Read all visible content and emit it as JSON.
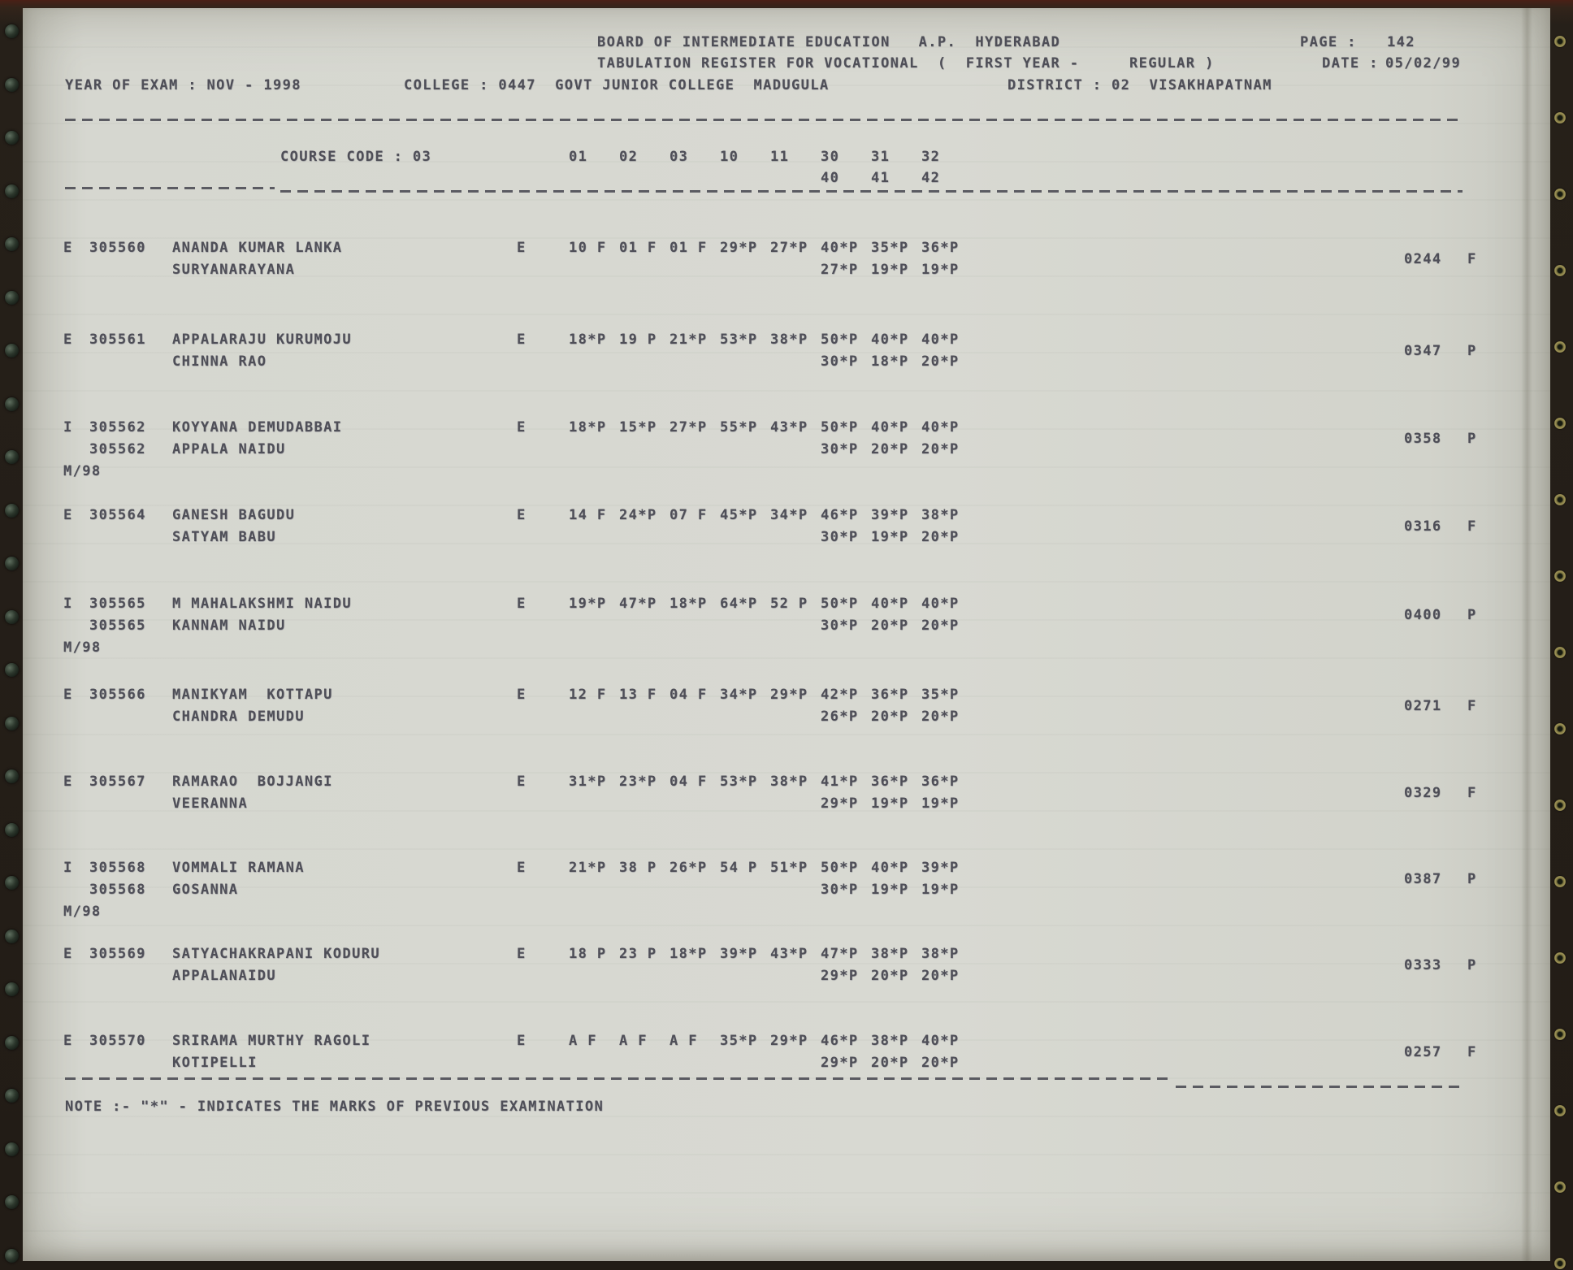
{
  "page": {
    "header": {
      "org": "BOARD OF INTERMEDIATE EDUCATION   A.P.  HYDERABAD",
      "page_label": "PAGE :",
      "page_number": "142",
      "register_title": "TABULATION REGISTER FOR VOCATIONAL  (  FIRST YEAR -",
      "register_regular": "REGULAR )",
      "date_label": "DATE :",
      "date_value": "05/02/99",
      "year_of_exam": "YEAR OF EXAM : NOV - 1998",
      "college": "COLLEGE : 0447  GOVT JUNIOR COLLEGE  MADUGULA",
      "district": "DISTRICT : 02  VISAKHAPATNAM"
    },
    "course": {
      "code_label": "COURSE CODE : 03",
      "columns_row1": [
        "01",
        "02",
        "03",
        "10",
        "11",
        "30",
        "31",
        "32"
      ],
      "columns_row2": [
        "40",
        "41",
        "42"
      ]
    },
    "records": [
      {
        "status": "E",
        "reg_no": "305560",
        "reg_no2": "",
        "prev_exam": "",
        "name_line1": "ANANDA KUMAR LANKA",
        "name_line2": "SURYANARAYANA",
        "medium": "E",
        "marks_row1": [
          "10 F",
          "01 F",
          "01 F",
          "29*P",
          "27*P",
          "40*P",
          "35*P",
          "36*P"
        ],
        "marks_row2": [
          "27*P",
          "19*P",
          "19*P"
        ],
        "total": "0244",
        "result": "F"
      },
      {
        "status": "E",
        "reg_no": "305561",
        "reg_no2": "",
        "prev_exam": "",
        "name_line1": "APPALARAJU KURUMOJU",
        "name_line2": "CHINNA RAO",
        "medium": "E",
        "marks_row1": [
          "18*P",
          "19 P",
          "21*P",
          "53*P",
          "38*P",
          "50*P",
          "40*P",
          "40*P"
        ],
        "marks_row2": [
          "30*P",
          "18*P",
          "20*P"
        ],
        "total": "0347",
        "result": "P"
      },
      {
        "status": "I",
        "reg_no": "305562",
        "reg_no2": "305562",
        "prev_exam": "M/98",
        "name_line1": "KOYYANA DEMUDABBAI",
        "name_line2": "APPALA NAIDU",
        "medium": "E",
        "marks_row1": [
          "18*P",
          "15*P",
          "27*P",
          "55*P",
          "43*P",
          "50*P",
          "40*P",
          "40*P"
        ],
        "marks_row2": [
          "30*P",
          "20*P",
          "20*P"
        ],
        "total": "0358",
        "result": "P"
      },
      {
        "status": "E",
        "reg_no": "305564",
        "reg_no2": "",
        "prev_exam": "",
        "name_line1": "GANESH BAGUDU",
        "name_line2": "SATYAM BABU",
        "medium": "E",
        "marks_row1": [
          "14 F",
          "24*P",
          "07 F",
          "45*P",
          "34*P",
          "46*P",
          "39*P",
          "38*P"
        ],
        "marks_row2": [
          "30*P",
          "19*P",
          "20*P"
        ],
        "total": "0316",
        "result": "F"
      },
      {
        "status": "I",
        "reg_no": "305565",
        "reg_no2": "305565",
        "prev_exam": "M/98",
        "name_line1": "M MAHALAKSHMI NAIDU",
        "name_line2": "KANNAM NAIDU",
        "medium": "E",
        "marks_row1": [
          "19*P",
          "47*P",
          "18*P",
          "64*P",
          "52 P",
          "50*P",
          "40*P",
          "40*P"
        ],
        "marks_row2": [
          "30*P",
          "20*P",
          "20*P"
        ],
        "total": "0400",
        "result": "P"
      },
      {
        "status": "E",
        "reg_no": "305566",
        "reg_no2": "",
        "prev_exam": "",
        "name_line1": "MANIKYAM  KOTTAPU",
        "name_line2": "CHANDRA DEMUDU",
        "medium": "E",
        "marks_row1": [
          "12 F",
          "13 F",
          "04 F",
          "34*P",
          "29*P",
          "42*P",
          "36*P",
          "35*P"
        ],
        "marks_row2": [
          "26*P",
          "20*P",
          "20*P"
        ],
        "total": "0271",
        "result": "F"
      },
      {
        "status": "E",
        "reg_no": "305567",
        "reg_no2": "",
        "prev_exam": "",
        "name_line1": "RAMARAO  BOJJANGI",
        "name_line2": "VEERANNA",
        "medium": "E",
        "marks_row1": [
          "31*P",
          "23*P",
          "04 F",
          "53*P",
          "38*P",
          "41*P",
          "36*P",
          "36*P"
        ],
        "marks_row2": [
          "29*P",
          "19*P",
          "19*P"
        ],
        "total": "0329",
        "result": "F"
      },
      {
        "status": "I",
        "reg_no": "305568",
        "reg_no2": "305568",
        "prev_exam": "M/98",
        "name_line1": "VOMMALI RAMANA",
        "name_line2": "GOSANNA",
        "medium": "E",
        "marks_row1": [
          "21*P",
          "38 P",
          "26*P",
          "54 P",
          "51*P",
          "50*P",
          "40*P",
          "39*P"
        ],
        "marks_row2": [
          "30*P",
          "19*P",
          "19*P"
        ],
        "total": "0387",
        "result": "P"
      },
      {
        "status": "E",
        "reg_no": "305569",
        "reg_no2": "",
        "prev_exam": "",
        "name_line1": "SATYACHAKRAPANI KODURU",
        "name_line2": "APPALANAIDU",
        "medium": "E",
        "marks_row1": [
          "18 P",
          "23 P",
          "18*P",
          "39*P",
          "43*P",
          "47*P",
          "38*P",
          "38*P"
        ],
        "marks_row2": [
          "29*P",
          "20*P",
          "20*P"
        ],
        "total": "0333",
        "result": "P"
      },
      {
        "status": "E",
        "reg_no": "305570",
        "reg_no2": "",
        "prev_exam": "",
        "name_line1": "SRIRAMA MURTHY RAGOLI",
        "name_line2": "KOTIPELLI",
        "medium": "E",
        "marks_row1": [
          "A F",
          "A F",
          "A F",
          "35*P",
          "29*P",
          "46*P",
          "38*P",
          "40*P"
        ],
        "marks_row2": [
          "29*P",
          "20*P",
          "20*P"
        ],
        "total": "0257",
        "result": "F"
      }
    ],
    "note": "NOTE :- \"*\" - INDICATES THE MARKS OF PREVIOUS EXAMINATION"
  }
}
